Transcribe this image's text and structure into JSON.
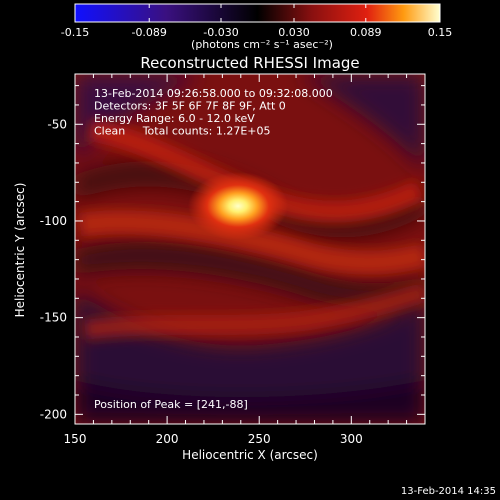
{
  "colorbar": {
    "ticks": [
      "-0.15",
      "-0.089",
      "-0.030",
      "0.030",
      "0.089",
      "0.15"
    ],
    "tick_values": [
      -0.15,
      -0.089,
      -0.03,
      0.03,
      0.089,
      0.15
    ],
    "range": [
      -0.15,
      0.15
    ],
    "units_label": "(photons cm⁻² s⁻¹ asec⁻²)"
  },
  "chart_data": {
    "type": "heatmap",
    "title": "Reconstructed RHESSI Image",
    "xlabel": "Heliocentric X (arcsec)",
    "ylabel": "Heliocentric Y (arcsec)",
    "xlim": [
      150,
      340
    ],
    "ylim": [
      -205,
      -24
    ],
    "x_ticks": [
      150,
      200,
      250,
      300
    ],
    "y_ticks": [
      -50,
      -100,
      -150,
      -200
    ],
    "colormap_range": [
      -0.15,
      0.15
    ],
    "peak": {
      "x": 241,
      "y": -88
    },
    "annotations": [
      "13-Feb-2014 09:26:58.000 to 09:32:08.000",
      "Detectors: 3F 5F 6F 7F 8F 9F, Att 0",
      "Energy Range: 6.0 - 12.0 keV",
      "Clean     Total counts: 1.27E+05"
    ],
    "peak_label": "Position of Peak = [241,-88]"
  },
  "footer": {
    "timestamp": "13-Feb-2014 14:35"
  }
}
